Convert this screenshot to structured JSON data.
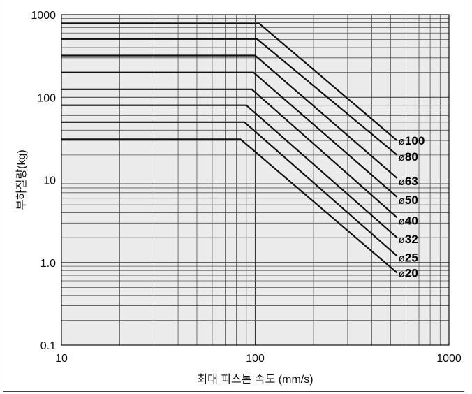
{
  "chart_data": {
    "type": "line",
    "title": "",
    "xlabel": "최대 피스톤 속도 (mm/s)",
    "ylabel": "부하질량(kg)",
    "xscale": "log",
    "yscale": "log",
    "xlim": [
      10,
      1000
    ],
    "ylim": [
      0.1,
      1000
    ],
    "xticks": [
      10,
      100,
      1000
    ],
    "xtick_labels": [
      "10",
      "100",
      "1000"
    ],
    "yticks": [
      0.1,
      1,
      10,
      100,
      1000
    ],
    "ytick_labels": [
      "0.1",
      "1.0",
      "10",
      "100",
      "1000"
    ],
    "grid": true,
    "legend": "labels at right end of each line",
    "line_color": "#111111",
    "background": "#ebebeb",
    "series": [
      {
        "name": "ø100",
        "prefix": "ø",
        "number": "100",
        "x": [
          10,
          105,
          540
        ],
        "y": [
          780,
          780,
          30
        ]
      },
      {
        "name": "ø80",
        "prefix": "ø",
        "number": "80",
        "x": [
          10,
          102,
          540
        ],
        "y": [
          510,
          510,
          20
        ]
      },
      {
        "name": "ø63",
        "prefix": "ø",
        "number": "63",
        "x": [
          10,
          100,
          540
        ],
        "y": [
          320,
          320,
          10.5
        ]
      },
      {
        "name": "ø50",
        "prefix": "ø",
        "number": "50",
        "x": [
          10,
          98,
          540
        ],
        "y": [
          200,
          200,
          6.2
        ]
      },
      {
        "name": "ø40",
        "prefix": "ø",
        "number": "40",
        "x": [
          10,
          96,
          540
        ],
        "y": [
          125,
          125,
          3.5
        ]
      },
      {
        "name": "ø32",
        "prefix": "ø",
        "number": "32",
        "x": [
          10,
          90,
          540
        ],
        "y": [
          80,
          80,
          2.0
        ]
      },
      {
        "name": "ø25",
        "prefix": "ø",
        "number": "25",
        "x": [
          10,
          88,
          540
        ],
        "y": [
          50,
          50,
          1.2
        ]
      },
      {
        "name": "ø20",
        "prefix": "ø",
        "number": "20",
        "x": [
          10,
          84,
          540
        ],
        "y": [
          31,
          31,
          0.75
        ]
      }
    ]
  }
}
